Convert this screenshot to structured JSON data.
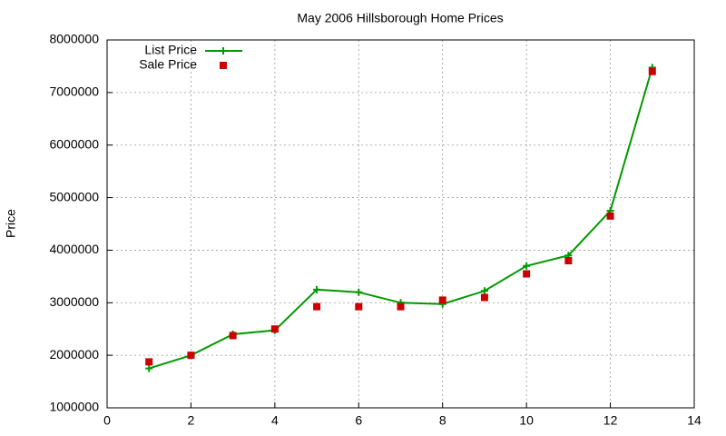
{
  "chart_data": {
    "type": "line",
    "title": "May 2006 Hillsborough Home Prices",
    "y_label": "Price",
    "x": [
      1,
      2,
      3,
      4,
      5,
      6,
      7,
      8,
      9,
      10,
      11,
      12,
      13
    ],
    "series": [
      {
        "name": "List Price",
        "color": "#009900",
        "style": "linespoints",
        "marker": "plus",
        "values": [
          1750000,
          2000000,
          2400000,
          2475000,
          3250000,
          3200000,
          3000000,
          2975000,
          3225000,
          3700000,
          3900000,
          4750000,
          7475000
        ]
      },
      {
        "name": "Sale Price",
        "color": "#cc0000",
        "style": "points",
        "marker": "square",
        "values": [
          1875000,
          2000000,
          2375000,
          2500000,
          2925000,
          2925000,
          2925000,
          3050000,
          3100000,
          3550000,
          3800000,
          4650000,
          7400000
        ]
      }
    ],
    "xlim": [
      0,
      14
    ],
    "xticks": [
      0,
      2,
      4,
      6,
      8,
      10,
      12,
      14
    ],
    "ylim": [
      1000000,
      8000000
    ],
    "yticks": [
      1000000,
      2000000,
      3000000,
      4000000,
      5000000,
      6000000,
      7000000,
      8000000
    ],
    "grid": true,
    "legend": "top-left"
  }
}
